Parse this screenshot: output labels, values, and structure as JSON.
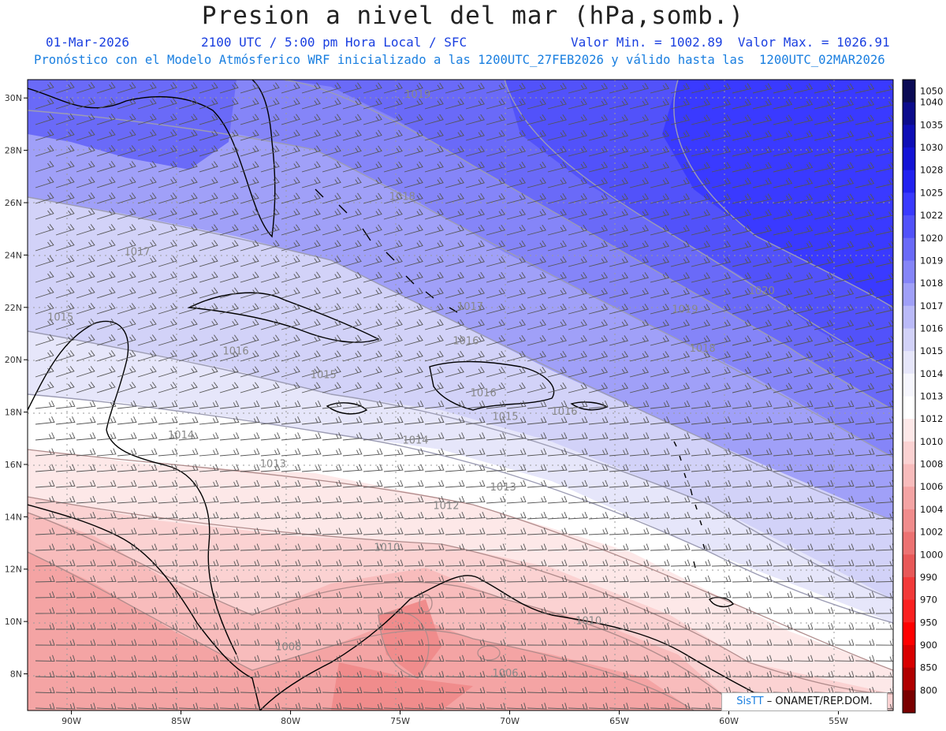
{
  "header": {
    "title": "Presion a nivel del mar (hPa,somb.)",
    "date": "01-Mar-2026",
    "time": "2100 UTC / 5:00 pm Hora Local / SFC",
    "minmax": "Valor Min. = 1002.89  Valor Max. = 1026.91",
    "model_line": "Pronóstico con el Modelo Atmósferico WRF inicializado a las 1200UTC_27FEB2026 y válido hasta las  1200UTC_02MAR2026"
  },
  "map": {
    "lon_range": [
      -92,
      -52.5
    ],
    "lat_range": [
      6.6,
      30.7
    ],
    "lon_ticks": [
      {
        "v": -90,
        "label": "90W"
      },
      {
        "v": -85,
        "label": "85W"
      },
      {
        "v": -80,
        "label": "80W"
      },
      {
        "v": -75,
        "label": "75W"
      },
      {
        "v": -70,
        "label": "70W"
      },
      {
        "v": -65,
        "label": "65W"
      },
      {
        "v": -60,
        "label": "60W"
      },
      {
        "v": -55,
        "label": "55W"
      }
    ],
    "lat_ticks": [
      {
        "v": 30,
        "label": "30N"
      },
      {
        "v": 28,
        "label": "28N"
      },
      {
        "v": 26,
        "label": "26N"
      },
      {
        "v": 24,
        "label": "24N"
      },
      {
        "v": 22,
        "label": "22N"
      },
      {
        "v": 20,
        "label": "20N"
      },
      {
        "v": 18,
        "label": "18N"
      },
      {
        "v": 16,
        "label": "16N"
      },
      {
        "v": 14,
        "label": "14N"
      },
      {
        "v": 12,
        "label": "12N"
      },
      {
        "v": 10,
        "label": "10N"
      },
      {
        "v": 8,
        "label": "8N"
      }
    ],
    "isobar_labels": [
      {
        "text": "1019",
        "lon": -74.2,
        "lat": 30.0
      },
      {
        "text": "1018",
        "lon": -74.9,
        "lat": 26.1
      },
      {
        "text": "1017",
        "lon": -87.0,
        "lat": 24.0
      },
      {
        "text": "1020",
        "lon": -58.5,
        "lat": 22.5
      },
      {
        "text": "1019",
        "lon": -62.0,
        "lat": 21.8
      },
      {
        "text": "1017",
        "lon": -71.8,
        "lat": 21.9
      },
      {
        "text": "1016",
        "lon": -72.0,
        "lat": 20.6
      },
      {
        "text": "1018",
        "lon": -61.2,
        "lat": 20.3
      },
      {
        "text": "1015",
        "lon": -90.5,
        "lat": 21.5
      },
      {
        "text": "1016",
        "lon": -82.5,
        "lat": 20.2
      },
      {
        "text": "1015",
        "lon": -78.5,
        "lat": 19.3
      },
      {
        "text": "1016",
        "lon": -71.2,
        "lat": 18.6
      },
      {
        "text": "1016",
        "lon": -67.5,
        "lat": 17.9
      },
      {
        "text": "1015",
        "lon": -70.2,
        "lat": 17.7
      },
      {
        "text": "1014",
        "lon": -85.0,
        "lat": 17.0
      },
      {
        "text": "1014",
        "lon": -74.3,
        "lat": 16.8
      },
      {
        "text": "1013",
        "lon": -80.8,
        "lat": 15.9
      },
      {
        "text": "1013",
        "lon": -70.3,
        "lat": 15.0
      },
      {
        "text": "1012",
        "lon": -72.9,
        "lat": 14.3
      },
      {
        "text": "1010",
        "lon": -75.6,
        "lat": 12.7
      },
      {
        "text": "1010",
        "lon": -66.4,
        "lat": 9.9
      },
      {
        "text": "1008",
        "lon": -80.1,
        "lat": 8.9
      },
      {
        "text": "1006",
        "lon": -70.2,
        "lat": 7.9
      }
    ]
  },
  "colorbar": {
    "levels": [
      {
        "label": "1050",
        "color": "#0b0b55"
      },
      {
        "label": "1040",
        "color": "#0c0c8c"
      },
      {
        "label": "1035",
        "color": "#0f0fb6"
      },
      {
        "label": "1030",
        "color": "#1414d6"
      },
      {
        "label": "1028",
        "color": "#2222f0"
      },
      {
        "label": "1025",
        "color": "#3a3aff"
      },
      {
        "label": "1022",
        "color": "#5252fa"
      },
      {
        "label": "1020",
        "color": "#6a6af8"
      },
      {
        "label": "1019",
        "color": "#8585f8"
      },
      {
        "label": "1018",
        "color": "#a0a0f8"
      },
      {
        "label": "1017",
        "color": "#babaf8"
      },
      {
        "label": "1016",
        "color": "#d2d2f8"
      },
      {
        "label": "1015",
        "color": "#e6e6fa"
      },
      {
        "label": "1014",
        "color": "#f6f6fd"
      },
      {
        "label": "1013",
        "color": "#ffffff"
      },
      {
        "label": "1012",
        "color": "#fde8e8"
      },
      {
        "label": "1010",
        "color": "#fbd2d2"
      },
      {
        "label": "1008",
        "color": "#f8bcbc"
      },
      {
        "label": "1006",
        "color": "#f4a4a4"
      },
      {
        "label": "1004",
        "color": "#f08c8c"
      },
      {
        "label": "1002",
        "color": "#ec7272"
      },
      {
        "label": "1000",
        "color": "#e85858"
      },
      {
        "label": "990",
        "color": "#f23a3a"
      },
      {
        "label": "970",
        "color": "#fa2020"
      },
      {
        "label": "950",
        "color": "#ff0000"
      },
      {
        "label": "900",
        "color": "#d80000"
      },
      {
        "label": "850",
        "color": "#b00000"
      },
      {
        "label": "800",
        "color": "#7a0000"
      }
    ]
  },
  "credit": {
    "brand": "SisTT",
    "org": "– ONAMET/REP.DOM."
  }
}
